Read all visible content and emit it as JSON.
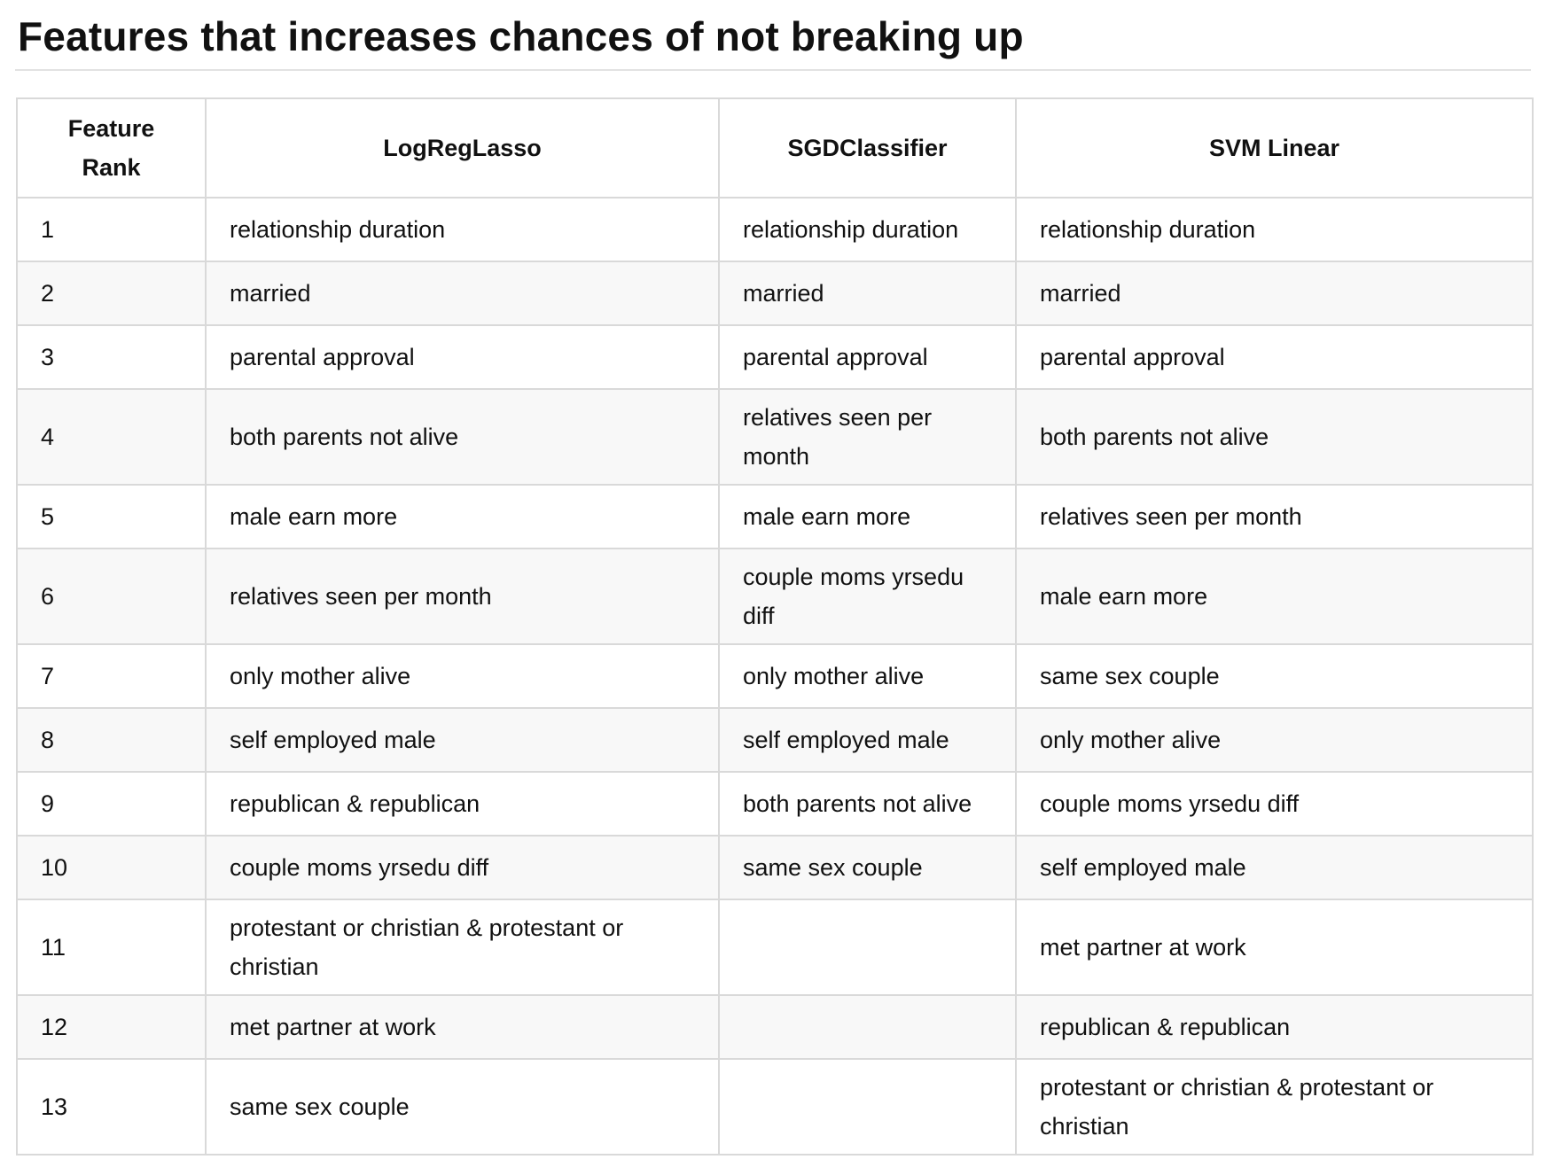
{
  "title": "Features that increases chances of not breaking up",
  "table": {
    "headers": {
      "rank_line1": "Feature",
      "rank_line2": "Rank",
      "col_a": "LogRegLasso",
      "col_b": "SGDClassifier",
      "col_c": "SVM Linear"
    },
    "rows": [
      {
        "rank": "1",
        "a": "relationship duration",
        "b": "relationship duration",
        "c": "relationship duration"
      },
      {
        "rank": "2",
        "a": "married",
        "b": "married",
        "c": "married"
      },
      {
        "rank": "3",
        "a": "parental approval",
        "b": "parental approval",
        "c": "parental approval"
      },
      {
        "rank": "4",
        "a": "both parents not alive",
        "b": "relatives seen per month",
        "c": "both parents not alive"
      },
      {
        "rank": "5",
        "a": "male earn more",
        "b": "male earn more",
        "c": "relatives seen per month"
      },
      {
        "rank": "6",
        "a": "relatives seen per month",
        "b": "couple moms yrsedu diff",
        "c": "male earn more"
      },
      {
        "rank": "7",
        "a": "only mother alive",
        "b": "only mother alive",
        "c": "same sex couple"
      },
      {
        "rank": "8",
        "a": "self employed male",
        "b": "self employed male",
        "c": "only mother alive"
      },
      {
        "rank": "9",
        "a": "republican & republican",
        "b": "both parents not alive",
        "c": "couple moms yrsedu diff"
      },
      {
        "rank": "10",
        "a": "couple moms yrsedu diff",
        "b": "same sex couple",
        "c": "self employed male"
      },
      {
        "rank": "11",
        "a": "protestant or christian & protestant or christian",
        "b": "",
        "c": "met partner at work"
      },
      {
        "rank": "12",
        "a": "met partner at work",
        "b": "",
        "c": "republican & republican"
      },
      {
        "rank": "13",
        "a": "same sex couple",
        "b": "",
        "c": "protestant or christian & protestant or christian"
      }
    ]
  }
}
